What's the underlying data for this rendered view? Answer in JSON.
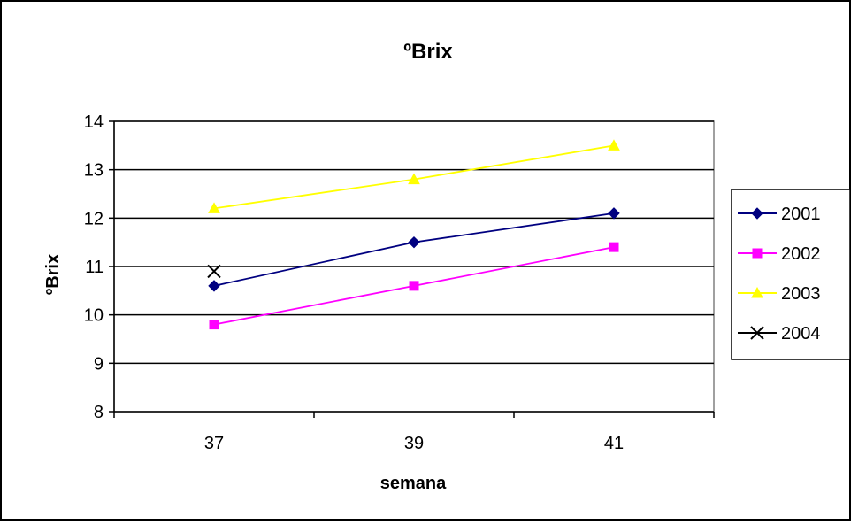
{
  "chart_data": {
    "type": "line",
    "title": "ºBrix",
    "xlabel": "semana",
    "ylabel": "ºBrix",
    "categories": [
      "37",
      "39",
      "41"
    ],
    "ylim": [
      8,
      14
    ],
    "yticks": [
      "8",
      "9",
      "10",
      "11",
      "12",
      "13",
      "14"
    ],
    "grid": true,
    "legend_position": "right",
    "series": [
      {
        "name": "2001",
        "values": [
          10.6,
          11.5,
          12.1
        ],
        "color": "#000080",
        "marker": "diamond"
      },
      {
        "name": "2002",
        "values": [
          9.8,
          10.6,
          11.4
        ],
        "color": "#ff00ff",
        "marker": "square"
      },
      {
        "name": "2003",
        "values": [
          12.2,
          12.8,
          13.5
        ],
        "color": "#ffff00",
        "marker": "triangle"
      },
      {
        "name": "2004",
        "values": [
          10.9,
          null,
          null
        ],
        "color": "#000000",
        "marker": "x"
      }
    ]
  }
}
